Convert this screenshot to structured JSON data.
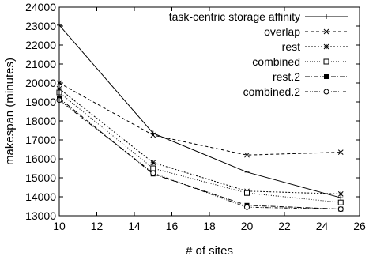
{
  "chart_data": {
    "type": "line",
    "title": "",
    "xlabel": "# of sites",
    "ylabel": "makespan (minutes)",
    "xlim": [
      10,
      26
    ],
    "ylim": [
      13000,
      24000
    ],
    "xticks": [
      10,
      12,
      14,
      16,
      18,
      20,
      22,
      24,
      26
    ],
    "yticks": [
      13000,
      14000,
      15000,
      16000,
      17000,
      18000,
      19000,
      20000,
      21000,
      22000,
      23000,
      24000
    ],
    "grid": false,
    "legend_position": "top-right",
    "x": [
      10,
      15,
      20,
      25
    ],
    "series": [
      {
        "name": "task-centric storage affinity",
        "values": [
          23050,
          17350,
          15300,
          13950
        ],
        "marker": "plus",
        "dash": ""
      },
      {
        "name": "overlap",
        "values": [
          20000,
          17250,
          16200,
          16350
        ],
        "marker": "cross",
        "dash": "4,3"
      },
      {
        "name": "rest",
        "values": [
          19700,
          15800,
          14300,
          14150
        ],
        "marker": "star",
        "dash": "2,2"
      },
      {
        "name": "combined",
        "values": [
          19500,
          15500,
          14200,
          13700
        ],
        "marker": "square-open",
        "dash": "1,2"
      },
      {
        "name": "rest.2",
        "values": [
          19200,
          15200,
          13550,
          13350
        ],
        "marker": "square-filled",
        "dash": "6,2,1,2"
      },
      {
        "name": "combined.2",
        "values": [
          19100,
          15250,
          13450,
          13350
        ],
        "marker": "circle-open",
        "dash": "4,2,1,2,1,2"
      }
    ]
  }
}
